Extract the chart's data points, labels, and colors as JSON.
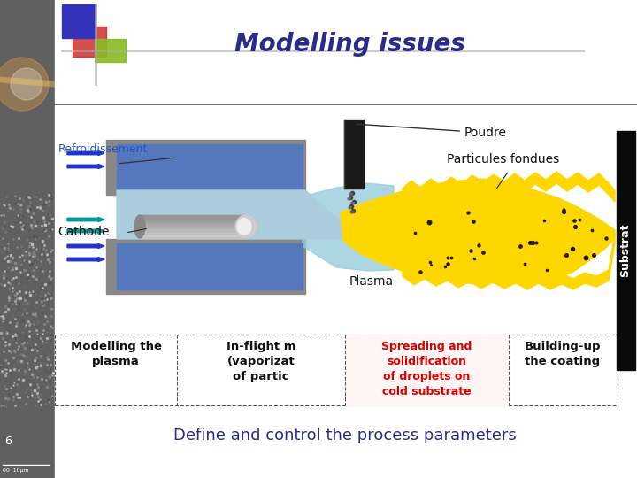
{
  "title": "Modelling issues",
  "title_color": "#2B2B8B",
  "title_fontsize": 20,
  "subtitle": "Define and control the process parameters",
  "subtitle_color": "#2B2B8B",
  "subtitle_fontsize": 13,
  "bg_color": "#FFFFFF",
  "label_Poudre": "Poudre",
  "label_Refroidissement": "Refroidissement",
  "label_Particules": "Particules fondues",
  "label_Cathode": "Cathode",
  "label_Plasma": "Plasma",
  "label_Substrat": "Substrat",
  "label_mod_plasma": "Modelling the\nplasma",
  "label_inflight": "In-flight m\n(vaporizat\nof partic",
  "label_spreading": "Spreading and\nsolidification\nof droplets on\ncold substrate",
  "label_building": "Building-up\nthe coating",
  "slide_number": "6"
}
